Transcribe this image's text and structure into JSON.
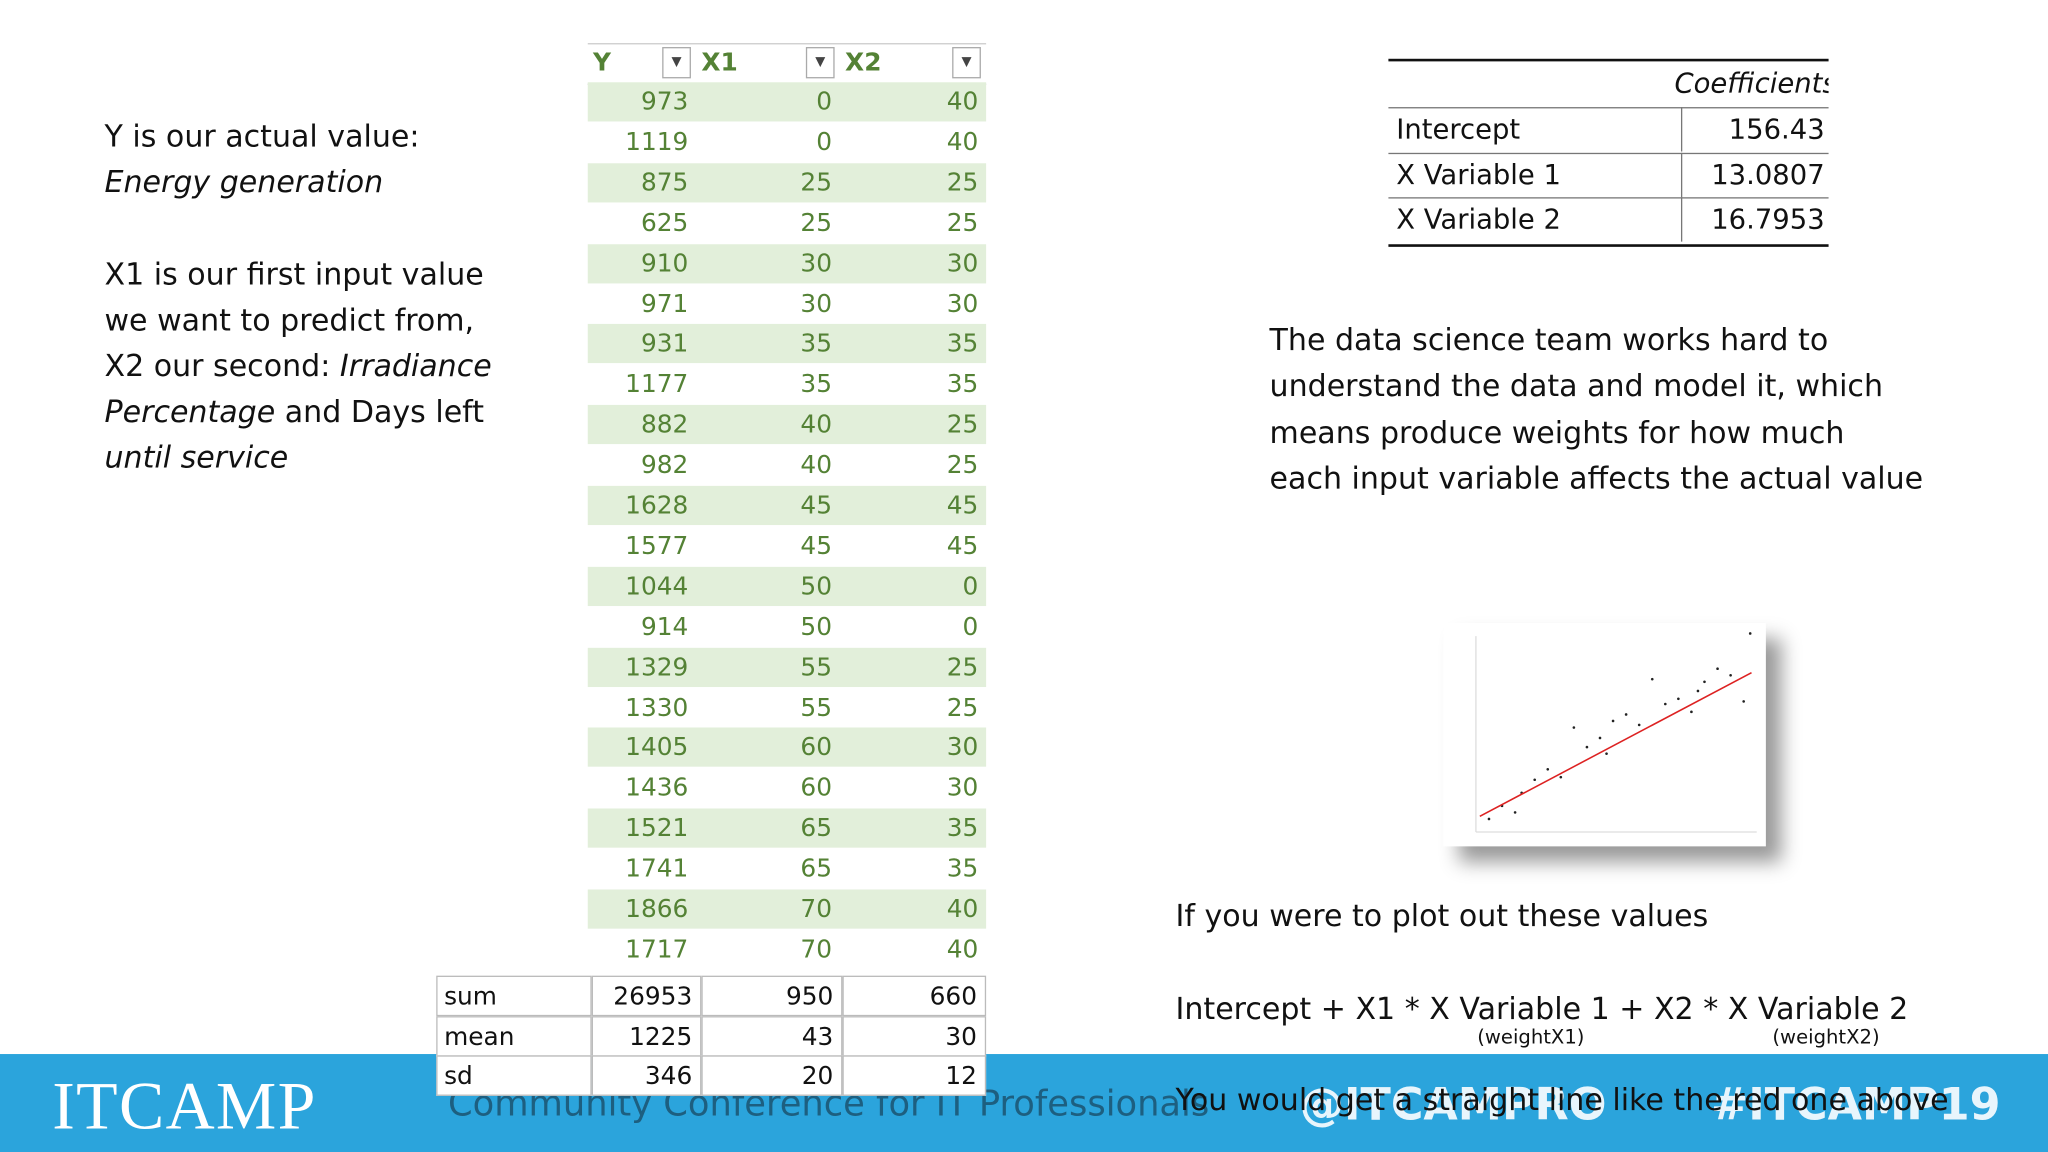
{
  "intro": {
    "paragraphs": [
      [
        [
          {
            "text": "Y is our actual value:",
            "italic": false
          }
        ],
        [
          {
            "text": "Energy generation",
            "italic": true
          }
        ]
      ],
      [
        [
          {
            "text": "X1 is our first input value",
            "italic": false
          }
        ],
        [
          {
            "text": "we want to predict from,",
            "italic": false
          }
        ],
        [
          {
            "text": "X2 our second: ",
            "italic": false
          },
          {
            "text": "Irradiance",
            "italic": true
          }
        ],
        [
          {
            "text": "Percentage",
            "italic": true
          },
          {
            "text": " and Days left",
            "italic": false
          }
        ],
        [
          {
            "text": "until service",
            "italic": true
          }
        ]
      ]
    ]
  },
  "table": {
    "headers": [
      "Y",
      "X1",
      "X2"
    ],
    "rows": [
      [
        973,
        0,
        40
      ],
      [
        1119,
        0,
        40
      ],
      [
        875,
        25,
        25
      ],
      [
        625,
        25,
        25
      ],
      [
        910,
        30,
        30
      ],
      [
        971,
        30,
        30
      ],
      [
        931,
        35,
        35
      ],
      [
        1177,
        35,
        35
      ],
      [
        882,
        40,
        25
      ],
      [
        982,
        40,
        25
      ],
      [
        1628,
        45,
        45
      ],
      [
        1577,
        45,
        45
      ],
      [
        1044,
        50,
        0
      ],
      [
        914,
        50,
        0
      ],
      [
        1329,
        55,
        25
      ],
      [
        1330,
        55,
        25
      ],
      [
        1405,
        60,
        30
      ],
      [
        1436,
        60,
        30
      ],
      [
        1521,
        65,
        35
      ],
      [
        1741,
        65,
        35
      ],
      [
        1866,
        70,
        40
      ],
      [
        1717,
        70,
        40
      ]
    ],
    "summary": [
      [
        "sum",
        26953,
        950,
        660
      ],
      [
        "mean",
        1225,
        43,
        30
      ],
      [
        "sd",
        346,
        20,
        12
      ]
    ]
  },
  "coefficients": {
    "header": "Coefficients",
    "rows": [
      [
        "Intercept",
        156.43
      ],
      [
        "X Variable 1",
        13.0807
      ],
      [
        "X Variable 2",
        16.7953
      ]
    ]
  },
  "explanation": [
    "The data science team works hard to",
    "understand the data and model it, which",
    "means produce weights for how much",
    "each input variable affects the actual value"
  ],
  "plot_text": {
    "intro": "If you were to plot out these values",
    "formula": "Intercept + X1 * X Variable 1 + X2 * X Variable 2",
    "note1": "(weightX1)",
    "note2": "(weightX2)",
    "conclusion": "You would get a straight line like the red one above"
  },
  "footer": {
    "logo": "ITCAMP",
    "tagline": "Community Conference for IT Professionals",
    "handle": "@ITCAMPRO",
    "hashtag": "#ITCAMP19"
  }
}
